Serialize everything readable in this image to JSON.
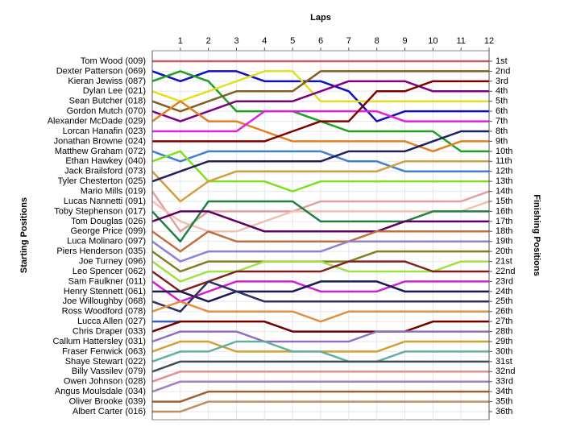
{
  "chart_data": {
    "type": "bump",
    "x_label": "Laps",
    "y_label": "Starting Positions",
    "y2_label": "Finishing Positions",
    "x": [
      0,
      1,
      2,
      3,
      4,
      5,
      6,
      7,
      8,
      9,
      10,
      11,
      12
    ],
    "xlim": [
      0,
      12
    ],
    "xticks": [
      1,
      2,
      3,
      4,
      5,
      6,
      7,
      8,
      9,
      10,
      11,
      12
    ],
    "ylim": [
      1,
      36
    ],
    "y2ticks": [
      {
        "value": 1,
        "label": "1st"
      },
      {
        "value": 2,
        "label": "2nd"
      },
      {
        "value": 3,
        "label": "3rd"
      },
      {
        "value": 4,
        "label": "4th"
      },
      {
        "value": 5,
        "label": "5th"
      },
      {
        "value": 6,
        "label": "6th"
      },
      {
        "value": 7,
        "label": "7th"
      },
      {
        "value": 8,
        "label": "8th"
      },
      {
        "value": 9,
        "label": "9th"
      },
      {
        "value": 10,
        "label": "10th"
      },
      {
        "value": 11,
        "label": "11th"
      },
      {
        "value": 12,
        "label": "12th"
      },
      {
        "value": 13,
        "label": "13th"
      },
      {
        "value": 14,
        "label": "14th"
      },
      {
        "value": 15,
        "label": "15th"
      },
      {
        "value": 16,
        "label": "16th"
      },
      {
        "value": 17,
        "label": "17th"
      },
      {
        "value": 18,
        "label": "18th"
      },
      {
        "value": 19,
        "label": "19th"
      },
      {
        "value": 20,
        "label": "20th"
      },
      {
        "value": 21,
        "label": "21st"
      },
      {
        "value": 22,
        "label": "22nd"
      },
      {
        "value": 23,
        "label": "23rd"
      },
      {
        "value": 24,
        "label": "24th"
      },
      {
        "value": 25,
        "label": "25th"
      },
      {
        "value": 26,
        "label": "26th"
      },
      {
        "value": 27,
        "label": "27th"
      },
      {
        "value": 28,
        "label": "28th"
      },
      {
        "value": 29,
        "label": "29th"
      },
      {
        "value": 30,
        "label": "30th"
      },
      {
        "value": 31,
        "label": "31st"
      },
      {
        "value": 32,
        "label": "32nd"
      },
      {
        "value": 33,
        "label": "33rd"
      },
      {
        "value": 34,
        "label": "34th"
      },
      {
        "value": 35,
        "label": "35th"
      },
      {
        "value": 36,
        "label": "36th"
      }
    ],
    "grid": true,
    "series": [
      {
        "name": "Tom Wood (009)",
        "color": "#c06060",
        "values": [
          1,
          1,
          1,
          1,
          1,
          1,
          1,
          1,
          1,
          1,
          1,
          1,
          1
        ]
      },
      {
        "name": "Dexter Patterson (069)",
        "color": "#1010c0",
        "values": [
          2,
          3,
          2,
          2,
          3,
          3,
          3,
          4,
          7,
          6,
          6,
          6,
          6
        ]
      },
      {
        "name": "Kieran Jewiss (087)",
        "color": "#20a020",
        "values": [
          3,
          2,
          3,
          6,
          6,
          6,
          7,
          8,
          8,
          8,
          8,
          10,
          10
        ]
      },
      {
        "name": "Dylan Lee (021)",
        "color": "#e0e020",
        "values": [
          4,
          5,
          4,
          3,
          2,
          2,
          5,
          5,
          5,
          5,
          5,
          5,
          5
        ]
      },
      {
        "name": "Sean Butcher (018)",
        "color": "#806020",
        "values": [
          5,
          6,
          5,
          4,
          4,
          4,
          2,
          2,
          2,
          2,
          2,
          2,
          2
        ]
      },
      {
        "name": "Gordon Mutch (070)",
        "color": "#800080",
        "values": [
          6,
          7,
          6,
          5,
          5,
          5,
          4,
          3,
          3,
          3,
          4,
          4,
          4
        ]
      },
      {
        "name": "Alexander McDade (029)",
        "color": "#e08020",
        "values": [
          7,
          5,
          7,
          7,
          8,
          9,
          9,
          9,
          9,
          9,
          10,
          9,
          9
        ]
      },
      {
        "name": "Lorcan Hanafin (023)",
        "color": "#e020e0",
        "values": [
          8,
          8,
          8,
          8,
          6,
          6,
          6,
          6,
          6,
          7,
          7,
          7,
          7
        ]
      },
      {
        "name": "Jonathan Browne (024)",
        "color": "#800000",
        "values": [
          9,
          9,
          9,
          9,
          9,
          8,
          7,
          7,
          4,
          4,
          3,
          3,
          3
        ]
      },
      {
        "name": "Matthew Graham (072)",
        "color": "#4080d0",
        "values": [
          10,
          11,
          10,
          10,
          10,
          10,
          10,
          11,
          11,
          12,
          12,
          12,
          12
        ]
      },
      {
        "name": "Ethan Hawkey (040)",
        "color": "#80e020",
        "values": [
          11,
          10,
          13,
          13,
          13,
          14,
          13,
          13,
          13,
          13,
          13,
          13,
          13
        ]
      },
      {
        "name": "Jack Brailsford (073)",
        "color": "#d0a040",
        "values": [
          12,
          15,
          13,
          12,
          12,
          12,
          12,
          12,
          12,
          11,
          11,
          11,
          11
        ]
      },
      {
        "name": "Tyler Chesterton (025)",
        "color": "#202060",
        "values": [
          13,
          12,
          11,
          11,
          11,
          11,
          11,
          10,
          10,
          10,
          9,
          8,
          8
        ]
      },
      {
        "name": "Mario Mills (019)",
        "color": "#e0a0a0",
        "values": [
          14,
          18,
          16,
          16,
          16,
          16,
          15,
          15,
          15,
          15,
          15,
          15,
          14
        ]
      },
      {
        "name": "Lucas Nannetti (091)",
        "color": "#f0c0b0",
        "values": [
          15,
          17,
          18,
          18,
          17,
          16,
          16,
          16,
          16,
          16,
          16,
          16,
          15
        ]
      },
      {
        "name": "Toby Stephenson (017)",
        "color": "#208040",
        "values": [
          16,
          19,
          15,
          15,
          15,
          15,
          17,
          17,
          17,
          17,
          16,
          16,
          16
        ]
      },
      {
        "name": "Tom Douglas (026)",
        "color": "#600060",
        "values": [
          17,
          16,
          16,
          17,
          18,
          18,
          18,
          18,
          18,
          17,
          17,
          17,
          17
        ]
      },
      {
        "name": "George Price (099)",
        "color": "#c07040",
        "values": [
          18,
          20,
          18,
          19,
          19,
          19,
          19,
          19,
          18,
          18,
          18,
          18,
          18
        ]
      },
      {
        "name": "Luca Molinaro (097)",
        "color": "#9080d0",
        "values": [
          19,
          21,
          20,
          20,
          20,
          20,
          20,
          19,
          19,
          19,
          19,
          19,
          19
        ]
      },
      {
        "name": "Piers Henderson (035)",
        "color": "#808020",
        "values": [
          20,
          22,
          21,
          21,
          21,
          21,
          21,
          21,
          20,
          20,
          20,
          20,
          20
        ]
      },
      {
        "name": "Joe Turney (096)",
        "color": "#a0e040",
        "values": [
          21,
          23,
          22,
          22,
          21,
          21,
          21,
          22,
          22,
          22,
          22,
          21,
          21
        ]
      },
      {
        "name": "Leo Spencer (062)",
        "color": "#802020",
        "values": [
          22,
          24,
          23,
          22,
          22,
          22,
          22,
          21,
          21,
          21,
          22,
          22,
          22
        ]
      },
      {
        "name": "Sam Faulkner (011)",
        "color": "#d020d0",
        "values": [
          23,
          25,
          24,
          23,
          23,
          23,
          24,
          24,
          24,
          23,
          23,
          23,
          23
        ]
      },
      {
        "name": "Henry Stennett (061)",
        "color": "#1a1a50",
        "values": [
          24,
          24,
          25,
          24,
          24,
          24,
          23,
          23,
          23,
          24,
          24,
          24,
          24
        ]
      },
      {
        "name": "Joe Willoughby (068)",
        "color": "#303060",
        "values": [
          25,
          26,
          23,
          24,
          25,
          25,
          25,
          25,
          25,
          25,
          25,
          25,
          25
        ]
      },
      {
        "name": "Ross Woodford (078)",
        "color": "#e09040",
        "values": [
          26,
          25,
          26,
          26,
          26,
          26,
          27,
          26,
          26,
          26,
          26,
          26,
          26
        ]
      },
      {
        "name": "Lucca Allen (027)",
        "color": "#3060c0",
        "values": [
          27,
          27,
          null,
          null,
          null,
          null,
          null,
          null,
          null,
          null,
          null,
          null,
          null
        ]
      },
      {
        "name": "Chris Draper (033)",
        "color": "#700000",
        "values": [
          28,
          27,
          27,
          27,
          27,
          28,
          28,
          28,
          28,
          28,
          27,
          27,
          27
        ]
      },
      {
        "name": "Callum Hattersley (031)",
        "color": "#9070c0",
        "values": [
          29,
          28,
          28,
          28,
          29,
          29,
          29,
          29,
          28,
          28,
          28,
          28,
          28
        ]
      },
      {
        "name": "Fraser Fenwick (063)",
        "color": "#d0a030",
        "values": [
          30,
          29,
          29,
          30,
          30,
          30,
          30,
          30,
          30,
          29,
          29,
          29,
          29
        ]
      },
      {
        "name": "Shaye Stewart (022)",
        "color": "#60b0a0",
        "values": [
          31,
          30,
          30,
          29,
          29,
          30,
          30,
          31,
          31,
          30,
          30,
          30,
          30
        ]
      },
      {
        "name": "Billy Vassilev (079)",
        "color": "#405050",
        "values": [
          32,
          31,
          31,
          31,
          31,
          31,
          31,
          31,
          31,
          31,
          31,
          31,
          31
        ]
      },
      {
        "name": "Owen Johnson (028)",
        "color": "#e09090",
        "values": [
          33,
          32,
          32,
          32,
          32,
          32,
          32,
          32,
          32,
          32,
          32,
          32,
          32
        ]
      },
      {
        "name": "Angus Moulsdale (034)",
        "color": "#a080c0",
        "values": [
          34,
          33,
          33,
          33,
          33,
          33,
          33,
          33,
          33,
          33,
          33,
          33,
          33
        ]
      },
      {
        "name": "Oliver Brooke (039)",
        "color": "#a06030",
        "values": [
          35,
          35,
          34,
          34,
          34,
          34,
          34,
          34,
          34,
          34,
          34,
          34,
          34
        ]
      },
      {
        "name": "Albert Carter (016)",
        "color": "#c09060",
        "values": [
          36,
          36,
          35,
          35,
          35,
          35,
          35,
          35,
          35,
          35,
          35,
          35,
          35
        ]
      }
    ]
  }
}
